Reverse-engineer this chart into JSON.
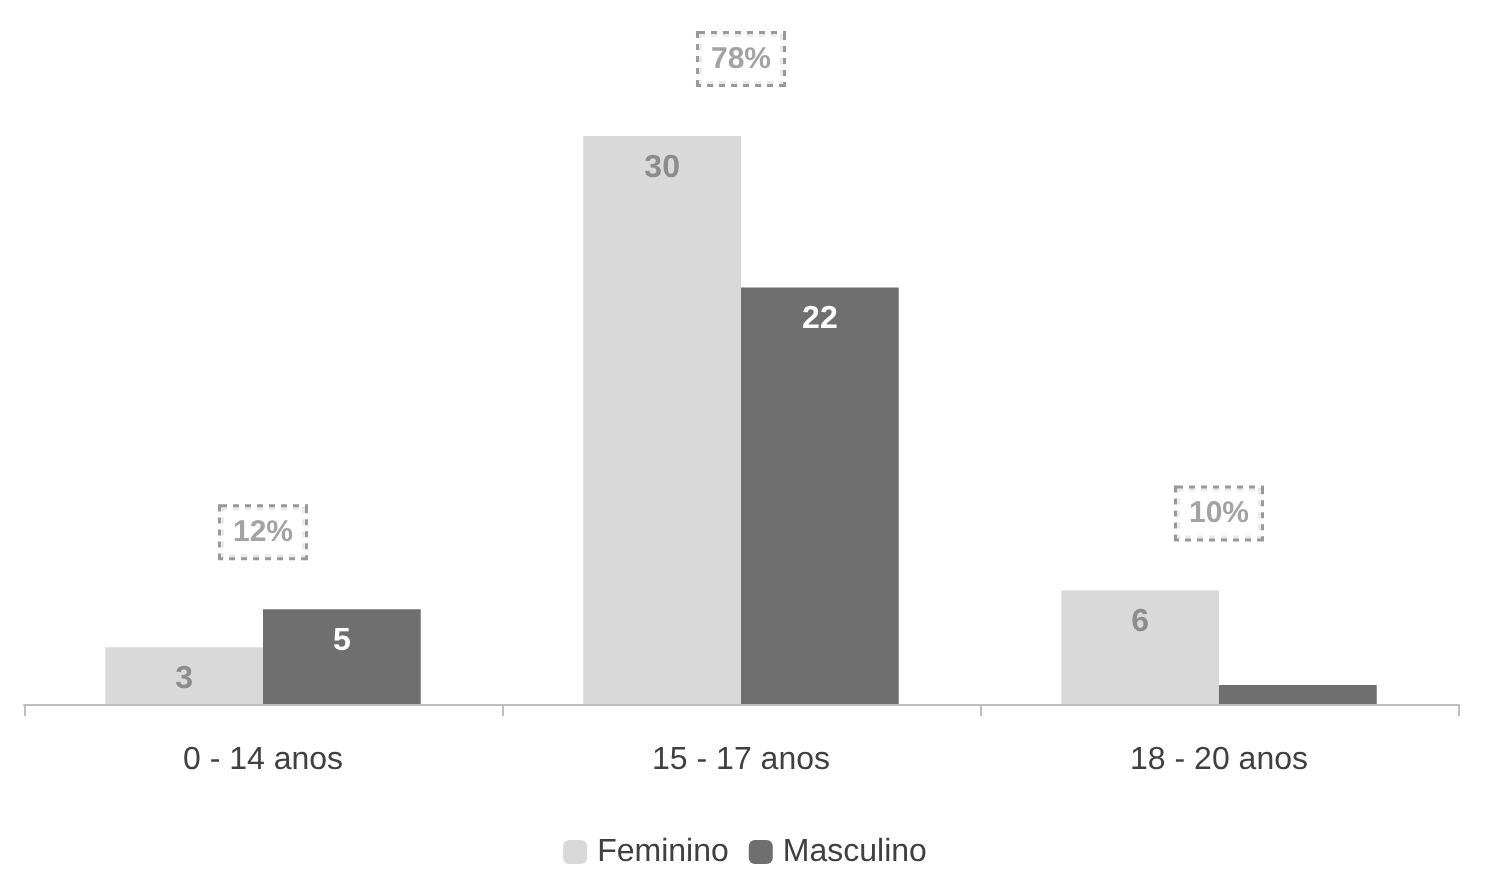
{
  "chart_data": {
    "type": "bar",
    "categories": [
      "0 - 14 anos",
      "15 - 17 anos",
      "18 - 20 anos"
    ],
    "series": [
      {
        "name": "Feminino",
        "color": "#d9d9d9",
        "values": [
          3,
          30,
          6
        ],
        "value_labels": [
          "3",
          "30",
          "6"
        ]
      },
      {
        "name": "Masculino",
        "color": "#6f6f6f",
        "values": [
          5,
          22,
          1
        ],
        "value_labels": [
          "5",
          "22",
          null
        ]
      }
    ],
    "annotations": [
      "12%",
      "78%",
      "10%"
    ],
    "legend": "bottom"
  }
}
